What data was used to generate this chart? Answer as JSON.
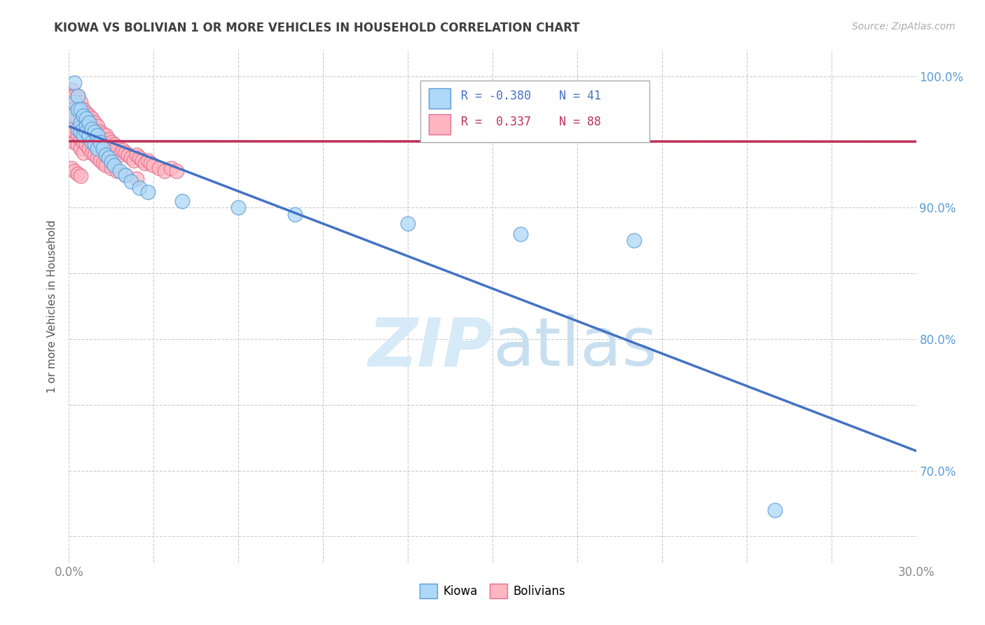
{
  "title": "KIOWA VS BOLIVIAN 1 OR MORE VEHICLES IN HOUSEHOLD CORRELATION CHART",
  "source_text": "Source: ZipAtlas.com",
  "ylabel": "1 or more Vehicles in Household",
  "xlim": [
    0.0,
    0.3
  ],
  "ylim": [
    0.63,
    1.02
  ],
  "xticks": [
    0.0,
    0.03,
    0.06,
    0.09,
    0.12,
    0.15,
    0.18,
    0.21,
    0.24,
    0.27,
    0.3
  ],
  "xticklabels_left": "0.0%",
  "xticklabels_right": "30.0%",
  "ytick_positions": [
    0.65,
    0.7,
    0.75,
    0.8,
    0.85,
    0.9,
    0.95,
    1.0
  ],
  "ytick_labels": [
    "",
    "70.0%",
    "",
    "80.0%",
    "",
    "90.0%",
    "",
    "100.0%"
  ],
  "r_kiowa": -0.38,
  "n_kiowa": 41,
  "r_bolivian": 0.337,
  "n_bolivian": 88,
  "kiowa_fill_color": "#add8f7",
  "kiowa_edge_color": "#5b9bd5",
  "bolivian_fill_color": "#ffb6c1",
  "bolivian_edge_color": "#e07090",
  "kiowa_line_color": "#4472c4",
  "bolivian_line_color": "#c0325a",
  "watermark_color": "#d6eaf8",
  "background_color": "#ffffff",
  "grid_color": "#cccccc",
  "title_color": "#404040",
  "axis_label_color": "#555555",
  "tick_color": "#888888",
  "right_tick_color": "#5b9bd5",
  "kiowa_x": [
    0.001,
    0.002,
    0.002,
    0.003,
    0.003,
    0.003,
    0.004,
    0.004,
    0.004,
    0.005,
    0.005,
    0.005,
    0.006,
    0.006,
    0.006,
    0.007,
    0.007,
    0.008,
    0.008,
    0.009,
    0.009,
    0.01,
    0.01,
    0.011,
    0.012,
    0.013,
    0.014,
    0.015,
    0.016,
    0.018,
    0.02,
    0.022,
    0.025,
    0.028,
    0.04,
    0.06,
    0.08,
    0.12,
    0.16,
    0.2,
    0.25
  ],
  "kiowa_y": [
    0.97,
    0.98,
    0.995,
    0.985,
    0.975,
    0.96,
    0.975,
    0.965,
    0.958,
    0.97,
    0.96,
    0.955,
    0.968,
    0.962,
    0.958,
    0.965,
    0.955,
    0.96,
    0.95,
    0.958,
    0.948,
    0.955,
    0.945,
    0.95,
    0.945,
    0.94,
    0.938,
    0.935,
    0.932,
    0.928,
    0.925,
    0.92,
    0.915,
    0.912,
    0.905,
    0.9,
    0.895,
    0.888,
    0.88,
    0.875,
    0.67
  ],
  "bolivian_x": [
    0.001,
    0.001,
    0.002,
    0.002,
    0.002,
    0.003,
    0.003,
    0.003,
    0.003,
    0.004,
    0.004,
    0.004,
    0.005,
    0.005,
    0.005,
    0.005,
    0.006,
    0.006,
    0.006,
    0.007,
    0.007,
    0.007,
    0.008,
    0.008,
    0.008,
    0.009,
    0.009,
    0.01,
    0.01,
    0.01,
    0.011,
    0.011,
    0.012,
    0.012,
    0.013,
    0.013,
    0.014,
    0.014,
    0.015,
    0.015,
    0.016,
    0.016,
    0.017,
    0.018,
    0.019,
    0.02,
    0.021,
    0.022,
    0.023,
    0.024,
    0.025,
    0.026,
    0.027,
    0.028,
    0.029,
    0.03,
    0.032,
    0.034,
    0.036,
    0.038,
    0.001,
    0.001,
    0.002,
    0.002,
    0.003,
    0.003,
    0.004,
    0.004,
    0.005,
    0.005,
    0.006,
    0.007,
    0.008,
    0.009,
    0.01,
    0.011,
    0.012,
    0.013,
    0.015,
    0.017,
    0.02,
    0.024,
    0.001,
    0.002,
    0.003,
    0.004,
    0.13,
    0.175
  ],
  "bolivian_y": [
    0.99,
    0.985,
    0.985,
    0.975,
    0.97,
    0.985,
    0.975,
    0.968,
    0.96,
    0.98,
    0.97,
    0.962,
    0.975,
    0.968,
    0.96,
    0.955,
    0.972,
    0.964,
    0.958,
    0.97,
    0.962,
    0.955,
    0.968,
    0.96,
    0.952,
    0.965,
    0.958,
    0.962,
    0.955,
    0.948,
    0.958,
    0.95,
    0.956,
    0.948,
    0.955,
    0.948,
    0.952,
    0.944,
    0.95,
    0.942,
    0.948,
    0.94,
    0.946,
    0.94,
    0.944,
    0.942,
    0.94,
    0.938,
    0.936,
    0.94,
    0.938,
    0.936,
    0.934,
    0.936,
    0.934,
    0.932,
    0.93,
    0.928,
    0.93,
    0.928,
    0.96,
    0.952,
    0.958,
    0.95,
    0.955,
    0.948,
    0.952,
    0.945,
    0.95,
    0.942,
    0.948,
    0.945,
    0.942,
    0.94,
    0.938,
    0.936,
    0.934,
    0.932,
    0.93,
    0.928,
    0.925,
    0.922,
    0.93,
    0.928,
    0.926,
    0.924,
    0.97,
    0.985
  ]
}
